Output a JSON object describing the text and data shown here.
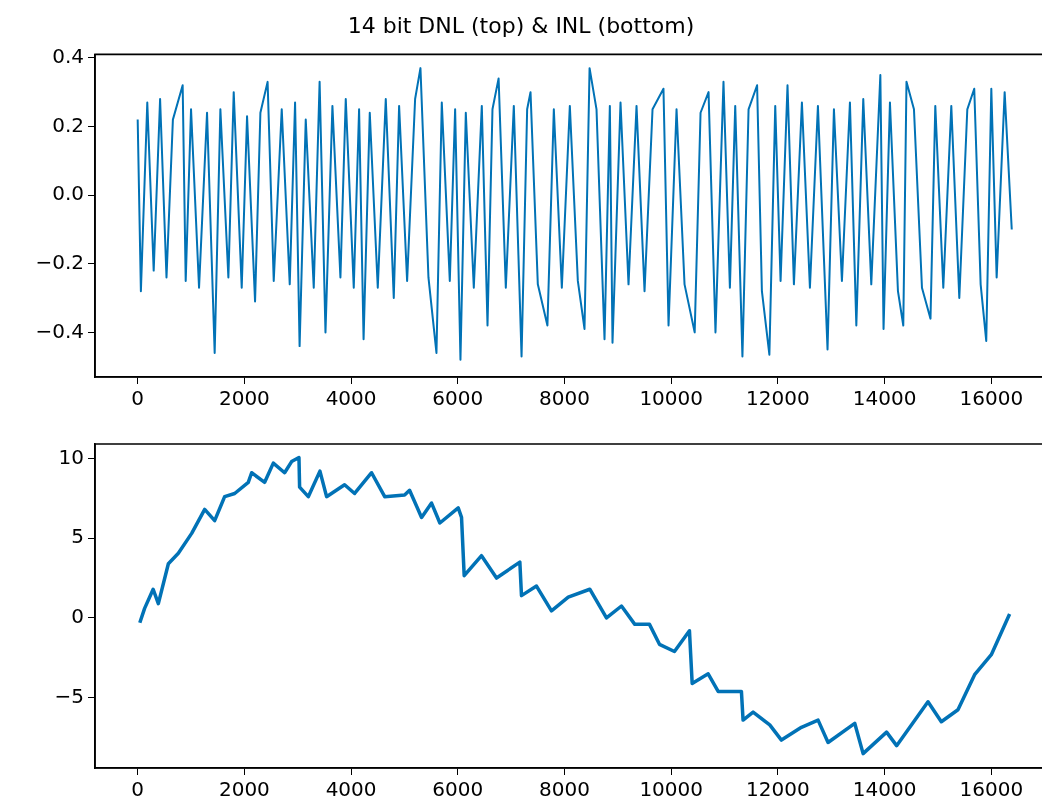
{
  "chart_data": [
    {
      "type": "line",
      "title": "14 bit DNL (top) & INL (bottom)",
      "x": [
        0,
        60,
        180,
        300,
        420,
        540,
        660,
        843,
        900,
        1000,
        1150,
        1300,
        1443,
        1550,
        1700,
        1800,
        1950,
        2050,
        2200,
        2300,
        2435,
        2550,
        2700,
        2850,
        2950,
        3035,
        3150,
        3300,
        3410,
        3520,
        3650,
        3800,
        3900,
        4050,
        4150,
        4234,
        4350,
        4500,
        4650,
        4800,
        4900,
        5050,
        5200,
        5300,
        5450,
        5600,
        5700,
        5850,
        5950,
        6050,
        6150,
        6300,
        6450,
        6557,
        6650,
        6765,
        6900,
        7050,
        7195,
        7300,
        7363,
        7500,
        7680,
        7800,
        7950,
        8100,
        8250,
        8375,
        8470,
        8600,
        8750,
        8850,
        8900,
        9050,
        9200,
        9350,
        9500,
        9650,
        9855,
        9950,
        10100,
        10250,
        10440,
        10550,
        10700,
        10830,
        10980,
        11100,
        11200,
        11335,
        11450,
        11610,
        11700,
        11840,
        11950,
        12050,
        12180,
        12300,
        12450,
        12600,
        12750,
        12930,
        13050,
        13200,
        13350,
        13470,
        13600,
        13750,
        13920,
        13980,
        14100,
        14250,
        14350,
        14410,
        14550,
        14700,
        14860,
        14950,
        15100,
        15250,
        15400,
        15550,
        15680,
        15800,
        15905,
        16000,
        16100,
        16250,
        16383
      ],
      "series": [
        {
          "color": "#0172b6",
          "values": [
            0.22,
            -0.28,
            0.27,
            -0.22,
            0.28,
            -0.24,
            0.22,
            0.32,
            -0.25,
            0.25,
            -0.27,
            0.24,
            -0.46,
            0.25,
            -0.24,
            0.3,
            -0.27,
            0.23,
            -0.31,
            0.24,
            0.33,
            -0.25,
            0.25,
            -0.26,
            0.27,
            -0.44,
            0.22,
            -0.27,
            0.33,
            -0.4,
            0.26,
            -0.24,
            0.28,
            -0.27,
            0.25,
            -0.42,
            0.24,
            -0.27,
            0.28,
            -0.3,
            0.26,
            -0.25,
            0.28,
            0.37,
            -0.24,
            -0.46,
            0.27,
            -0.25,
            0.25,
            -0.48,
            0.24,
            -0.27,
            0.26,
            -0.38,
            0.25,
            0.34,
            -0.27,
            0.26,
            -0.47,
            0.25,
            0.3,
            -0.26,
            -0.38,
            0.25,
            -0.27,
            0.26,
            -0.25,
            -0.39,
            0.37,
            0.25,
            -0.42,
            0.26,
            -0.43,
            0.27,
            -0.26,
            0.26,
            -0.28,
            0.25,
            0.31,
            -0.38,
            0.25,
            -0.26,
            -0.4,
            0.24,
            0.3,
            -0.4,
            0.33,
            -0.27,
            0.26,
            -0.47,
            0.25,
            0.32,
            -0.28,
            -0.465,
            0.26,
            -0.25,
            0.32,
            -0.26,
            0.27,
            -0.27,
            0.26,
            -0.45,
            0.25,
            -0.25,
            0.27,
            -0.38,
            0.28,
            -0.26,
            0.35,
            -0.39,
            0.27,
            -0.28,
            -0.38,
            0.33,
            0.25,
            -0.27,
            -0.36,
            0.26,
            -0.27,
            0.26,
            -0.3,
            0.25,
            0.31,
            -0.26,
            -0.425,
            0.31,
            -0.24,
            0.3,
            -0.1
          ]
        }
      ],
      "xlim": [
        -800,
        16950
      ],
      "xticks": [
        0,
        2000,
        4000,
        6000,
        8000,
        10000,
        12000,
        14000,
        16000
      ],
      "ylim": [
        -0.53,
        0.41
      ],
      "yticks": [
        {
          "value": -0.4,
          "label": "−0.4"
        },
        {
          "value": -0.2,
          "label": "−0.2"
        },
        {
          "value": 0,
          "label": "0.0"
        },
        {
          "value": 0.2,
          "label": "0.2"
        },
        {
          "value": 0.4,
          "label": "0.4"
        }
      ]
    },
    {
      "type": "line",
      "x": [
        40,
        130,
        290,
        387,
        575,
        762,
        1012,
        1256,
        1443,
        1630,
        1818,
        2073,
        2136,
        2380,
        2542,
        2754,
        2885,
        3023,
        3035,
        3198,
        3416,
        3541,
        3878,
        4066,
        4384,
        4630,
        5003,
        5096,
        5321,
        5508,
        5664,
        6008,
        6070,
        6120,
        6445,
        6726,
        7163,
        7194,
        7475,
        7756,
        8070,
        8474,
        8787,
        9068,
        9318,
        9593,
        9780,
        10061,
        10342,
        10393,
        10693,
        10880,
        11316,
        11347,
        11535,
        11847,
        12066,
        12441,
        12753,
        12940,
        13440,
        13597,
        14037,
        14225,
        14813,
        15063,
        15375,
        15687,
        16000,
        16343
      ],
      "series": [
        {
          "color": "#0172b6",
          "values": [
            -0.3,
            0.6,
            1.8,
            0.9,
            3.4,
            4.05,
            5.3,
            6.8,
            6.1,
            7.6,
            7.8,
            8.5,
            9.1,
            8.5,
            9.7,
            9.1,
            9.8,
            10.05,
            8.2,
            7.6,
            9.2,
            7.6,
            8.35,
            7.8,
            9.1,
            7.6,
            7.7,
            8.0,
            6.3,
            7.2,
            5.95,
            6.9,
            6.3,
            2.65,
            3.9,
            2.5,
            3.5,
            1.4,
            2.0,
            0.45,
            1.3,
            1.8,
            0.0,
            0.75,
            -0.4,
            -0.4,
            -1.65,
            -2.1,
            -0.8,
            -4.1,
            -3.5,
            -4.6,
            -4.6,
            -6.4,
            -5.9,
            -6.7,
            -7.65,
            -6.85,
            -6.4,
            -7.8,
            -6.6,
            -8.5,
            -7.15,
            -8.0,
            -5.25,
            -6.5,
            -5.75,
            -3.55,
            -2.3,
            0.25
          ]
        }
      ],
      "xlim": [
        -800,
        16950
      ],
      "xticks": [
        0,
        2000,
        4000,
        6000,
        8000,
        10000,
        12000,
        14000,
        16000
      ],
      "ylim": [
        -9.4,
        10.9
      ],
      "yticks": [
        {
          "value": -5,
          "label": "−5"
        },
        0,
        5,
        10
      ]
    }
  ]
}
